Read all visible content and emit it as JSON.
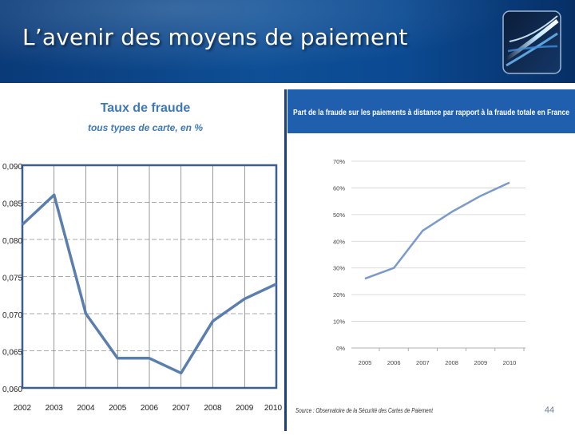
{
  "slide": {
    "title": "L’avenir des moyens de paiement",
    "page_number": "44",
    "colors": {
      "banner": "#0b4a92",
      "left_line": "#5a7fae",
      "right_line": "#7a9acb",
      "header_bar": "#1f5fae"
    }
  },
  "chart_data": [
    {
      "type": "line",
      "title": "Taux de fraude",
      "subtitle": "tous types de carte, en %",
      "x": [
        "2002",
        "2003",
        "2004",
        "2005",
        "2006",
        "2007",
        "2008",
        "2009",
        "2010"
      ],
      "series": [
        {
          "name": "Taux de fraude",
          "values": [
            0.082,
            0.086,
            0.07,
            0.064,
            0.064,
            0.062,
            0.069,
            0.072,
            0.074
          ]
        }
      ],
      "ylim": [
        0.06,
        0.09
      ],
      "yticks": [
        "0,090",
        "0,085",
        "0,080",
        "0,075",
        "0,070",
        "0,065",
        "0,060"
      ],
      "xlabel": "",
      "ylabel": ""
    },
    {
      "type": "line",
      "title": "Part de la fraude sur les paiements à distance par rapport à la fraude totale en France",
      "x": [
        "2005",
        "2006",
        "2007",
        "2008",
        "2009",
        "2010"
      ],
      "series": [
        {
          "name": "Part de la fraude à distance",
          "values": [
            26,
            30,
            44,
            51,
            57,
            62
          ]
        }
      ],
      "ylim": [
        0,
        70
      ],
      "yticks": [
        "70%",
        "60%",
        "50%",
        "40%",
        "30%",
        "20%",
        "10%",
        "0%"
      ],
      "source": "Source : Observatoire de la Sécurité des Cartes de Paiement",
      "xlabel": "",
      "ylabel": ""
    }
  ]
}
